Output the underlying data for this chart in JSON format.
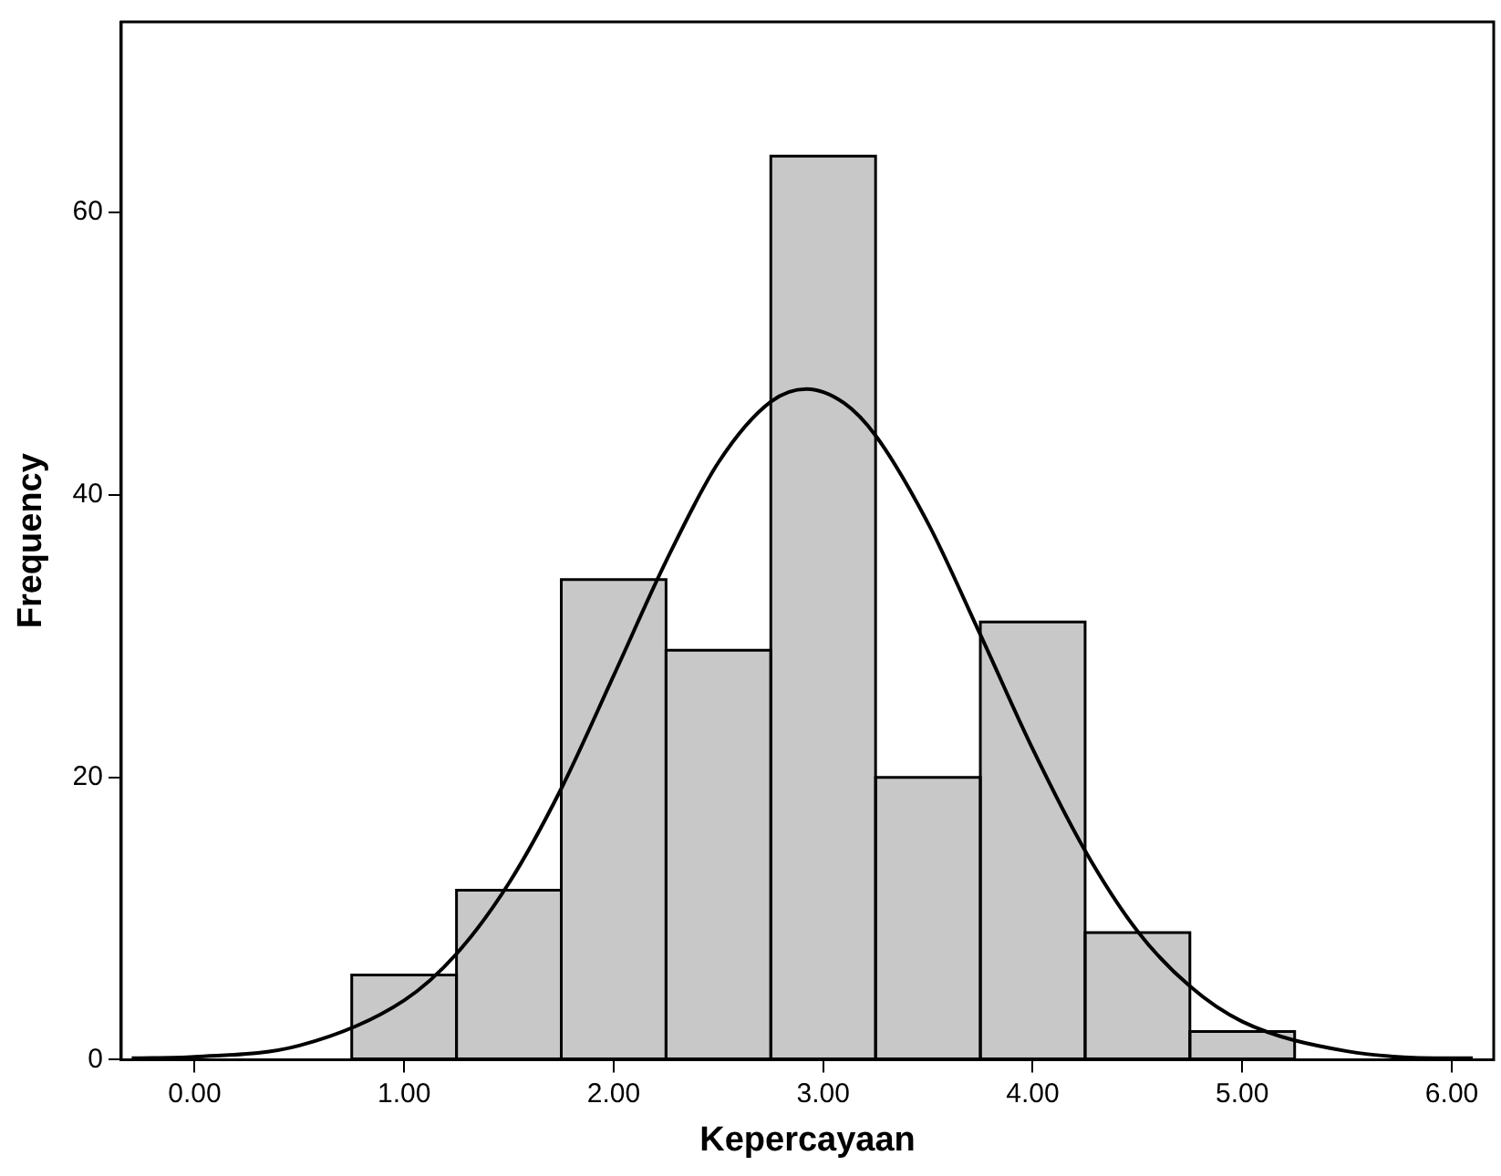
{
  "chart_data": {
    "type": "histogram",
    "xlabel": "Kepercayaan",
    "ylabel": "Frequency",
    "bins": [
      0.75,
      1.25,
      1.75,
      2.25,
      2.75,
      3.25,
      3.75,
      4.25,
      4.75,
      5.25
    ],
    "values": [
      6,
      12,
      34,
      29,
      64,
      20,
      31,
      9,
      2
    ],
    "color": "#c8c8c8",
    "series": [
      {
        "type": "line",
        "color": "#000000",
        "x": [
          -0.3,
          0,
          0.5,
          1,
          1.25,
          1.5,
          1.75,
          2,
          2.25,
          2.5,
          2.75,
          2.92,
          3.1,
          3.25,
          3.5,
          3.75,
          4,
          4.25,
          4.5,
          4.75,
          5,
          5.5,
          6,
          6.1
        ],
        "values": [
          0.1,
          0.2,
          1,
          4.2,
          7.5,
          12.5,
          19.2,
          27.2,
          35.3,
          42.3,
          46.6,
          47.5,
          46.5,
          44.2,
          38,
          30.1,
          22,
          14.8,
          9.1,
          5.2,
          2.7,
          0.6,
          0.1,
          0.1
        ]
      }
    ],
    "xlim": [
      -0.35,
      6.2
    ],
    "xticks": [
      {
        "value": 0,
        "label": "0.00"
      },
      {
        "value": 1,
        "label": "1.00"
      },
      {
        "value": 2,
        "label": "2.00"
      },
      {
        "value": 3,
        "label": "3.00"
      },
      {
        "value": 4,
        "label": "4.00"
      },
      {
        "value": 5,
        "label": "5.00"
      },
      {
        "value": 6,
        "label": "6.00"
      }
    ],
    "ylim": [
      0,
      73.5
    ],
    "yticks": [
      0,
      20,
      40,
      60
    ],
    "grid": false,
    "legend": false,
    "marker": "none",
    "line_style": "solid"
  }
}
